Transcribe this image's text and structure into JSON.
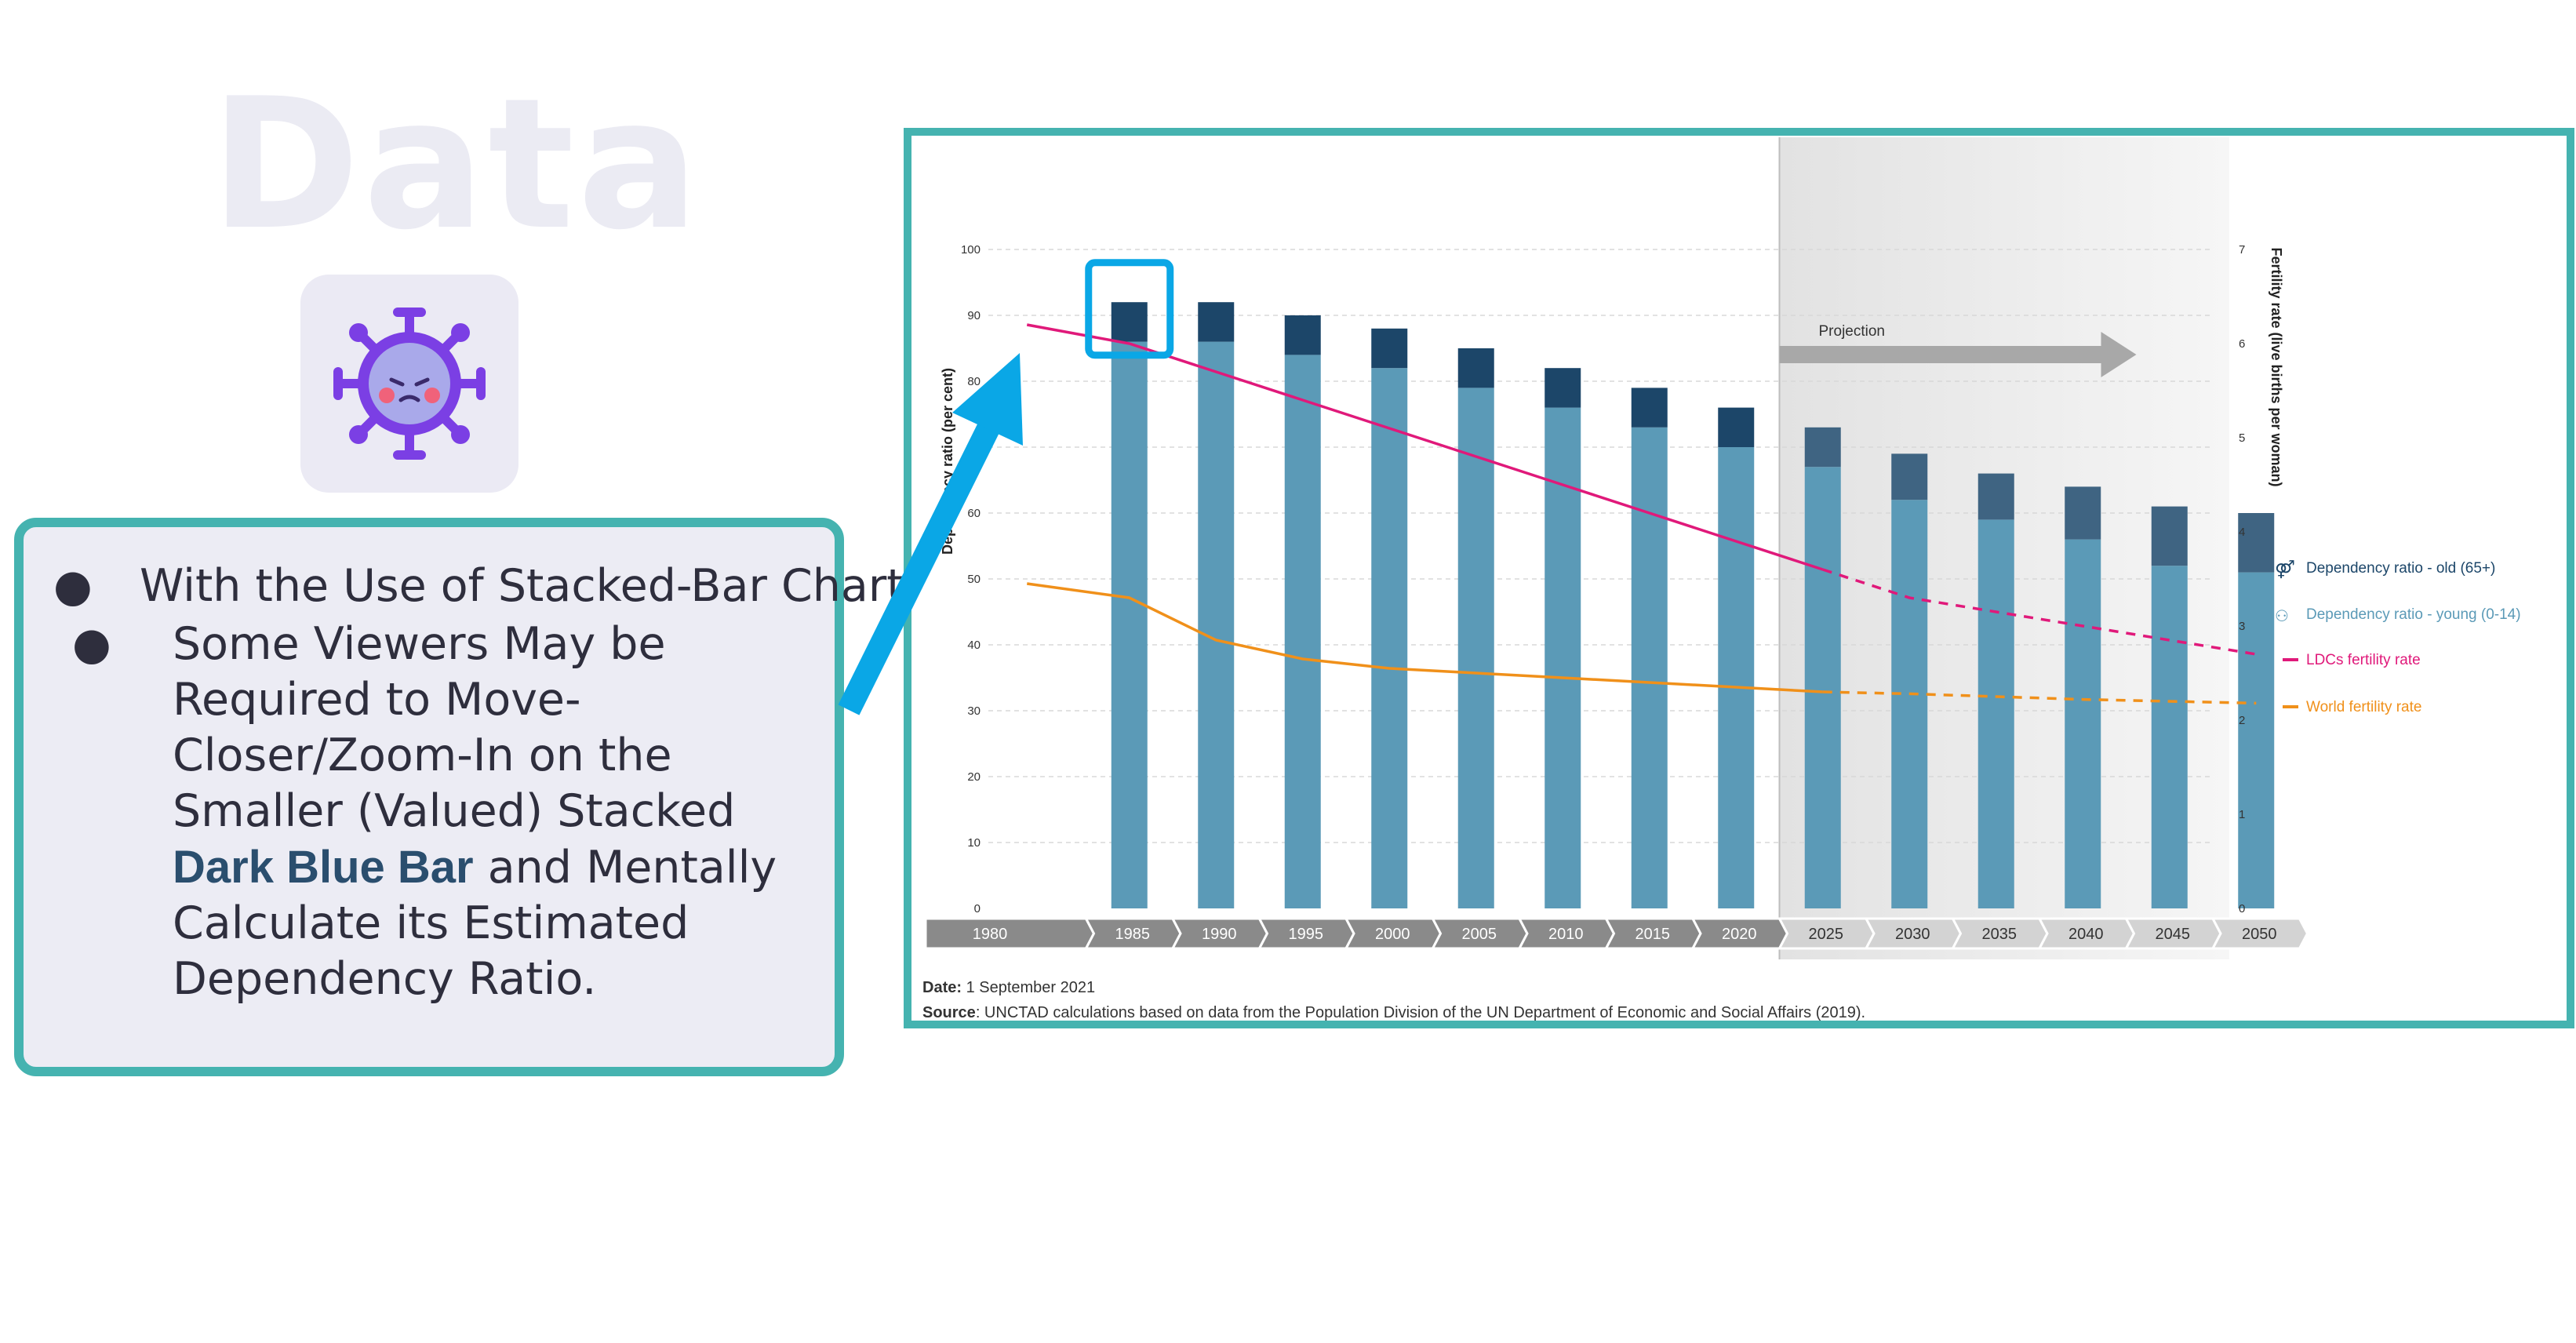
{
  "slide": {
    "watermark": "Data",
    "icon": "virus-icon",
    "bullet_main": "With the Use of Stacked-Bar Charts",
    "bullet_sub_part1": "Some Viewers May be Required to Move-Closer/Zoom-In on the Smaller (Valued) Stacked",
    "bullet_sub_bold": "Dark Blue Bar",
    "bullet_sub_part2": "and Mentally Calculate its Estimated Dependency Ratio."
  },
  "colors": {
    "accent_teal": "#45b3b0",
    "arrow": "#0aa7e6",
    "young_bar": "#5b9ab7",
    "old_bar": "#1c4669",
    "old_bar_projection": "#3f6482",
    "ldc_line": "#e0197a",
    "world_line": "#f0901a"
  },
  "chart_data": {
    "type": "bar",
    "stacked": true,
    "categories": [
      "1980",
      "1985",
      "1990",
      "1995",
      "2000",
      "2005",
      "2010",
      "2015",
      "2020",
      "2025",
      "2030",
      "2035",
      "2040",
      "2045",
      "2050"
    ],
    "series": [
      {
        "name": "Dependency ratio - young (0-14)",
        "axis": "left",
        "values": [
          null,
          86,
          86,
          84,
          82,
          79,
          76,
          73,
          70,
          67,
          62,
          59,
          56,
          52,
          51
        ]
      },
      {
        "name": "Dependency ratio - old (65+)",
        "axis": "left",
        "values": [
          null,
          6,
          6,
          6,
          6,
          6,
          6,
          6,
          6,
          6,
          7,
          7,
          8,
          9,
          9
        ]
      },
      {
        "name": "LDCs fertility rate",
        "axis": "right",
        "type": "line",
        "x": [
          1980,
          1985,
          1990,
          1995,
          2000,
          2005,
          2010,
          2015,
          2020,
          2025,
          2030,
          2035,
          2040,
          2045,
          2050
        ],
        "values": [
          6.2,
          6.0,
          5.7,
          5.4,
          5.1,
          4.8,
          4.5,
          4.2,
          3.9,
          3.6,
          3.3,
          3.15,
          3.0,
          2.85,
          2.7
        ],
        "projected_from": 2025
      },
      {
        "name": "World fertility rate",
        "axis": "right",
        "type": "line",
        "x": [
          1980,
          1985,
          1990,
          1995,
          2000,
          2005,
          2010,
          2015,
          2020,
          2025,
          2030,
          2035,
          2040,
          2045,
          2050
        ],
        "values": [
          3.45,
          3.3,
          2.85,
          2.65,
          2.55,
          2.5,
          2.45,
          2.4,
          2.35,
          2.3,
          2.28,
          2.25,
          2.22,
          2.2,
          2.18
        ],
        "projected_from": 2025
      }
    ],
    "ylabel": "Dependency ratio (per cent)",
    "ylabel_right": "Fertility rate (live births per woman)",
    "ylim": [
      0,
      100
    ],
    "ylim_right": [
      0,
      7
    ],
    "yticks": [
      "0",
      "10",
      "20",
      "30",
      "40",
      "50",
      "60",
      "70",
      "80",
      "90",
      "100"
    ],
    "yticks_right": [
      "0",
      "1",
      "2",
      "3",
      "4",
      "5",
      "6",
      "7"
    ],
    "projection_label": "Projection",
    "projection_start": "2020",
    "legend_position": "right",
    "highlight_category": "1985",
    "date_label": "Date:",
    "date_value": "1 September 2021",
    "source_label": "Source",
    "source_text": ": UNCTAD calculations based on data from the Population Division of the UN Department of Economic and Social Affairs (2019)."
  }
}
